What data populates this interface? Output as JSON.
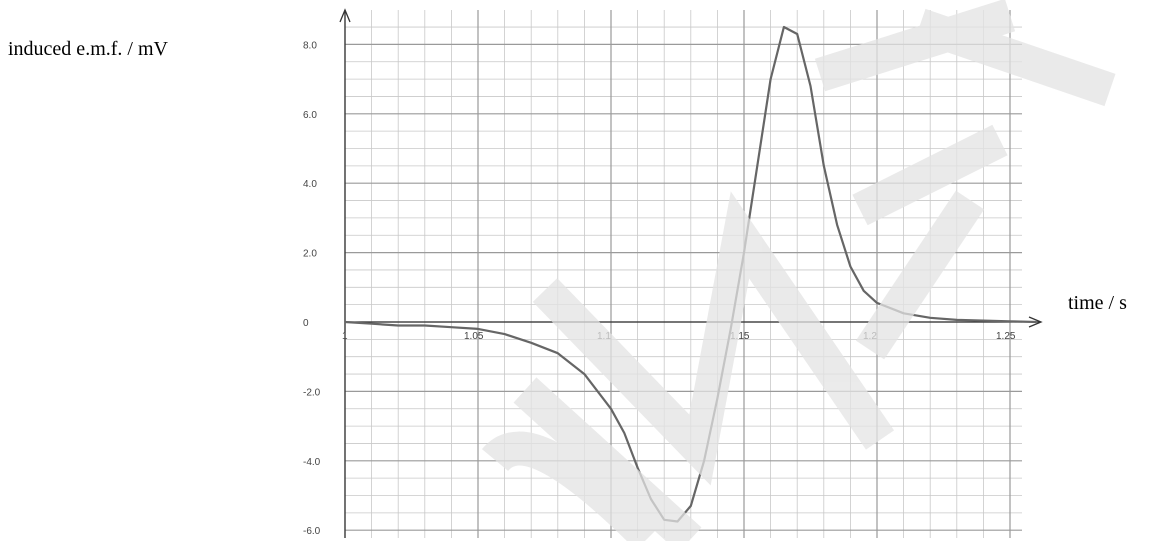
{
  "chart_data": {
    "type": "line",
    "xlabel": "time / s",
    "ylabel": "induced e.m.f. / mV",
    "xlim": [
      1.0,
      1.26
    ],
    "ylim": [
      -6.0,
      9.0
    ],
    "grid": true,
    "x_ticks": [
      "1",
      "1.05",
      "1.1",
      "1.15",
      "1.2",
      "1.25"
    ],
    "y_ticks": [
      "8.0",
      "6.0",
      "4.0",
      "2.0",
      "0",
      "-2.0",
      "-4.0",
      "-6.0"
    ],
    "series": [
      {
        "color": "#666666",
        "x": [
          1.0,
          1.01,
          1.02,
          1.03,
          1.04,
          1.05,
          1.06,
          1.07,
          1.08,
          1.09,
          1.1,
          1.105,
          1.11,
          1.115,
          1.12,
          1.125,
          1.13,
          1.135,
          1.14,
          1.145,
          1.15,
          1.155,
          1.16,
          1.165,
          1.17,
          1.175,
          1.18,
          1.185,
          1.19,
          1.195,
          1.2,
          1.21,
          1.22,
          1.23,
          1.24,
          1.25,
          1.26
        ],
        "y": [
          0.0,
          -0.05,
          -0.1,
          -0.1,
          -0.15,
          -0.2,
          -0.35,
          -0.6,
          -0.9,
          -1.5,
          -2.5,
          -3.2,
          -4.2,
          -5.1,
          -5.7,
          -5.75,
          -5.3,
          -4.0,
          -2.2,
          -0.2,
          2.0,
          4.5,
          7.0,
          8.5,
          8.3,
          6.8,
          4.5,
          2.8,
          1.6,
          0.9,
          0.55,
          0.25,
          0.12,
          0.06,
          0.04,
          0.02,
          0.0
        ]
      }
    ]
  }
}
